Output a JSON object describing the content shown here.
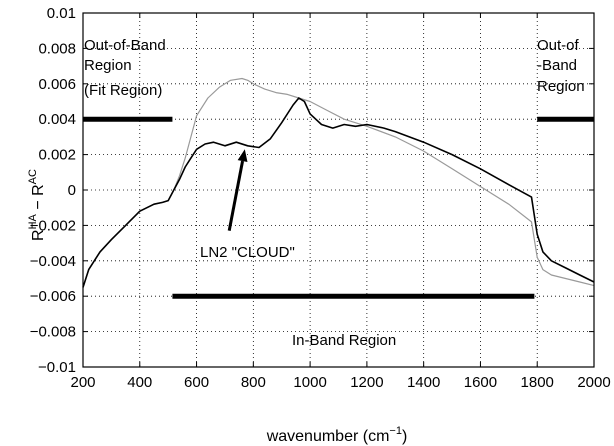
{
  "chart_data": {
    "type": "line",
    "title": "",
    "xlabel": "wavenumber (cm",
    "xlabel_sup": "−1",
    "xlabel_close": ")",
    "ylabel": "R",
    "ylabel_sup1": "HA",
    "ylabel_mid": " − R",
    "ylabel_sup2": "AC",
    "xlim": [
      200,
      2000
    ],
    "ylim": [
      -0.01,
      0.01
    ],
    "grid": true,
    "x_ticks": [
      200,
      400,
      600,
      800,
      1000,
      1200,
      1400,
      1600,
      1800,
      2000
    ],
    "y_ticks": [
      -0.01,
      -0.008,
      -0.006,
      -0.004,
      -0.002,
      0,
      0.002,
      0.004,
      0.006,
      0.008,
      0.01
    ],
    "x_tick_labels": [
      "200",
      "400",
      "600",
      "800",
      "1000",
      "1200",
      "1400",
      "1600",
      "1800",
      "2000"
    ],
    "y_tick_labels": [
      "−0.01",
      "−0.008",
      "−0.006",
      "−0.004",
      "−0.002",
      "0",
      "0.002",
      "0.004",
      "0.006",
      "0.008",
      "0.01"
    ],
    "series": [
      {
        "color": "#000000",
        "x": [
          200,
          220,
          260,
          300,
          350,
          400,
          450,
          480,
          500,
          520,
          540,
          560,
          580,
          600,
          630,
          660,
          700,
          740,
          780,
          820,
          860,
          900,
          940,
          960,
          980,
          1000,
          1040,
          1080,
          1120,
          1160,
          1200,
          1260,
          1300,
          1400,
          1500,
          1600,
          1700,
          1780,
          1800,
          1820,
          1850,
          1900,
          1950,
          2000
        ],
        "y": [
          -0.0055,
          -0.0045,
          -0.0035,
          -0.0028,
          -0.002,
          -0.0012,
          -0.0008,
          -0.0007,
          -0.0006,
          0.0,
          0.0006,
          0.0013,
          0.0018,
          0.0023,
          0.0026,
          0.0027,
          0.0025,
          0.0027,
          0.0025,
          0.0024,
          0.0029,
          0.0038,
          0.0048,
          0.0052,
          0.005,
          0.0043,
          0.0037,
          0.0035,
          0.0037,
          0.0036,
          0.0037,
          0.0035,
          0.0033,
          0.0027,
          0.002,
          0.0012,
          0.0003,
          -0.0004,
          -0.0025,
          -0.0035,
          -0.004,
          -0.0044,
          -0.0048,
          -0.0052
        ]
      },
      {
        "color": "#9a9a9a",
        "x": [
          200,
          220,
          260,
          300,
          350,
          400,
          450,
          480,
          500,
          520,
          540,
          560,
          580,
          600,
          640,
          680,
          720,
          760,
          780,
          800,
          840,
          880,
          920,
          960,
          1000,
          1060,
          1120,
          1200,
          1300,
          1400,
          1500,
          1600,
          1700,
          1780,
          1800,
          1820,
          1850,
          1900,
          1950,
          2000
        ],
        "y": [
          -0.0055,
          -0.0045,
          -0.0035,
          -0.0028,
          -0.002,
          -0.0012,
          -0.0008,
          -0.0007,
          -0.0006,
          0.0,
          0.0008,
          0.0018,
          0.003,
          0.0042,
          0.0052,
          0.0058,
          0.0062,
          0.0063,
          0.0062,
          0.006,
          0.0057,
          0.0055,
          0.0054,
          0.0052,
          0.005,
          0.0045,
          0.004,
          0.0036,
          0.003,
          0.0022,
          0.0012,
          0.0002,
          -0.0008,
          -0.0018,
          -0.0038,
          -0.0045,
          -0.0048,
          -0.005,
          -0.0052,
          -0.0054
        ]
      }
    ],
    "band_lines": [
      {
        "x": [
          200,
          515
        ],
        "y": [
          0.004,
          0.004
        ]
      },
      {
        "x": [
          1800,
          2000
        ],
        "y": [
          0.004,
          0.004
        ]
      },
      {
        "x": [
          515,
          1790
        ],
        "y": [
          -0.006,
          -0.006
        ]
      }
    ],
    "annotations": {
      "left_region_line1": "Out-of-Band",
      "left_region_line2": "Region",
      "left_region_line3": "(Fit Region)",
      "right_region_line1": "Out-of",
      "right_region_line2": "-Band",
      "right_region_line3": "Region",
      "in_band": "In-Band Region",
      "cloud": "LN2 \"CLOUD\""
    },
    "cloud_arrow": {
      "from": [
        715,
        -0.0023
      ],
      "to": [
        770,
        0.0023
      ]
    }
  }
}
